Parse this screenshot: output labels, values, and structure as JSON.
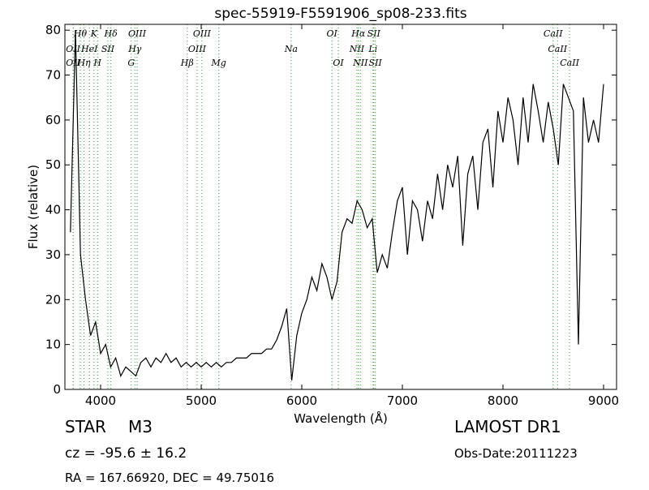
{
  "chart_data": {
    "type": "line",
    "title": "spec-55919-F5591906_sp08-233.fits",
    "x_label": "Wavelength (Å)",
    "y_label": "Flux (relative)",
    "xlim": [
      3645,
      9129
    ],
    "ylim": [
      0,
      81.3
    ],
    "xticks": [
      4000,
      5000,
      6000,
      7000,
      8000,
      9000
    ],
    "yticks": [
      0,
      10,
      20,
      30,
      40,
      50,
      60,
      70,
      80
    ],
    "grid": false,
    "series": [
      {
        "name": "flux",
        "color": "#000000",
        "x": [
          3700,
          3750,
          3800,
          3850,
          3900,
          3950,
          4000,
          4050,
          4100,
          4150,
          4200,
          4250,
          4300,
          4350,
          4400,
          4450,
          4500,
          4550,
          4600,
          4650,
          4700,
          4750,
          4800,
          4850,
          4900,
          4950,
          5000,
          5050,
          5100,
          5150,
          5200,
          5250,
          5300,
          5350,
          5400,
          5450,
          5500,
          5550,
          5600,
          5650,
          5700,
          5750,
          5800,
          5850,
          5900,
          5950,
          6000,
          6050,
          6100,
          6150,
          6200,
          6250,
          6300,
          6350,
          6400,
          6450,
          6500,
          6550,
          6600,
          6650,
          6700,
          6750,
          6800,
          6850,
          6900,
          6950,
          7000,
          7050,
          7100,
          7150,
          7200,
          7250,
          7300,
          7350,
          7400,
          7450,
          7500,
          7550,
          7600,
          7650,
          7700,
          7750,
          7800,
          7850,
          7900,
          7950,
          8000,
          8050,
          8100,
          8150,
          8200,
          8250,
          8300,
          8350,
          8400,
          8450,
          8500,
          8550,
          8600,
          8650,
          8700,
          8750,
          8800,
          8850,
          8900,
          8950,
          9000
        ],
        "values": [
          35,
          80,
          30,
          20,
          12,
          15,
          8,
          10,
          5,
          7,
          3,
          5,
          4,
          3,
          6,
          7,
          5,
          7,
          6,
          8,
          6,
          7,
          5,
          6,
          5,
          6,
          5,
          6,
          5,
          6,
          5,
          6,
          6,
          7,
          7,
          7,
          8,
          8,
          8,
          9,
          9,
          11,
          14,
          18,
          2,
          12,
          17,
          20,
          25,
          22,
          28,
          25,
          20,
          24,
          35,
          38,
          37,
          42,
          40,
          36,
          38,
          26,
          30,
          27,
          35,
          42,
          45,
          30,
          42,
          40,
          33,
          42,
          38,
          48,
          40,
          50,
          45,
          52,
          32,
          48,
          52,
          40,
          55,
          58,
          45,
          62,
          55,
          65,
          60,
          50,
          65,
          55,
          68,
          62,
          55,
          64,
          58,
          50,
          68,
          65,
          62,
          10,
          65,
          55,
          60,
          55,
          68
        ]
      }
    ],
    "lines": {
      "color": "#2ca02c",
      "wavelengths": [
        3727,
        3727,
        3798,
        3835,
        3889,
        3934,
        3969,
        4072,
        4102,
        4304,
        4341,
        4363,
        4861,
        4959,
        5007,
        5175,
        5894,
        6300,
        6363,
        6548,
        6563,
        6583,
        6708,
        6716,
        6731,
        8498,
        8542,
        8662
      ],
      "labels": [
        "OII",
        "OII",
        "Hθ",
        "Hη",
        "HeI",
        "K",
        "H",
        "SII",
        "Hδ",
        "G",
        "Hγ",
        "OIII",
        "Hβ",
        "OIII",
        "OIII",
        "Mg",
        "Na",
        "OI",
        "OI",
        "NII",
        "Hα",
        "NII",
        "Li",
        "SII",
        "SII",
        "CaII",
        "CaII",
        "CaII"
      ]
    },
    "footer": {
      "object": "STAR",
      "subclass": "M3",
      "cz": "cz = -95.6 ± 16.2",
      "coords": "RA = 167.66920, DEC = 49.75016",
      "survey": "LAMOST DR1",
      "date": "Obs-Date:20111223"
    }
  }
}
